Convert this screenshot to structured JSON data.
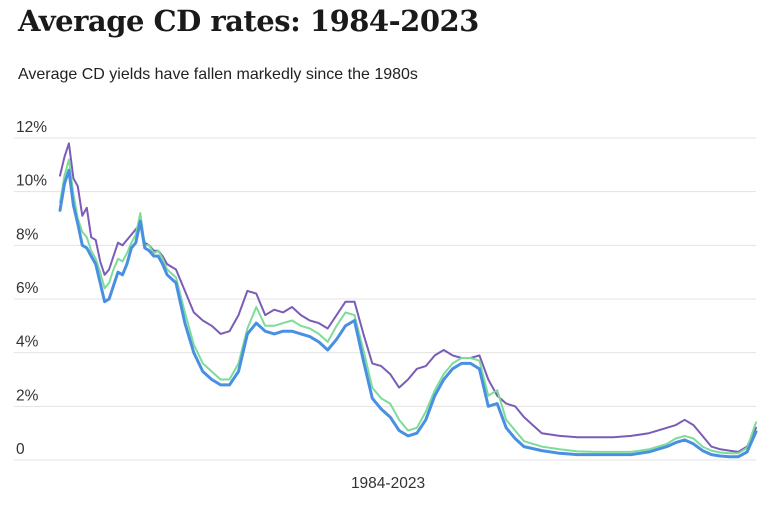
{
  "title": "Average CD rates: 1984-2023",
  "subtitle": "Average CD yields have fallen markedly since the 1980s",
  "chart_data": {
    "type": "line",
    "xlabel": "1984-2023",
    "ylabel": "",
    "ylim": [
      0,
      12
    ],
    "y_ticks": [
      "0",
      "2%",
      "4%",
      "6%",
      "8%",
      "10%",
      "12%"
    ],
    "grid": "horizontal",
    "x": [
      1984.0,
      1984.25,
      1984.5,
      1984.75,
      1985.0,
      1985.25,
      1985.5,
      1985.75,
      1986.0,
      1986.25,
      1986.5,
      1986.75,
      1987.0,
      1987.25,
      1987.5,
      1987.75,
      1988.0,
      1988.25,
      1988.5,
      1988.75,
      1989.0,
      1989.25,
      1989.5,
      1989.75,
      1990.0,
      1990.5,
      1991.0,
      1991.5,
      1992.0,
      1992.5,
      1993.0,
      1993.5,
      1994.0,
      1994.5,
      1995.0,
      1995.5,
      1996.0,
      1996.5,
      1997.0,
      1997.5,
      1998.0,
      1998.5,
      1999.0,
      1999.5,
      2000.0,
      2000.5,
      2001.0,
      2001.5,
      2002.0,
      2002.5,
      2003.0,
      2003.5,
      2004.0,
      2004.5,
      2005.0,
      2005.5,
      2006.0,
      2006.5,
      2007.0,
      2007.5,
      2008.0,
      2008.5,
      2009.0,
      2009.5,
      2010.0,
      2011.0,
      2012.0,
      2013.0,
      2014.0,
      2015.0,
      2016.0,
      2017.0,
      2018.0,
      2018.5,
      2019.0,
      2019.5,
      2020.0,
      2020.5,
      2021.0,
      2021.5,
      2022.0,
      2022.5,
      2023.0
    ],
    "series": [
      {
        "color": "#7b5cb8",
        "values": [
          10.6,
          11.3,
          11.8,
          10.5,
          10.2,
          9.1,
          9.4,
          8.3,
          8.2,
          7.4,
          6.9,
          7.1,
          7.6,
          8.1,
          8.0,
          8.2,
          8.4,
          8.6,
          8.8,
          8.1,
          8.0,
          7.8,
          7.8,
          7.6,
          7.3,
          7.1,
          6.3,
          5.5,
          5.2,
          5.0,
          4.7,
          4.8,
          5.4,
          6.3,
          6.2,
          5.4,
          5.6,
          5.5,
          5.7,
          5.4,
          5.2,
          5.1,
          4.9,
          5.4,
          5.9,
          5.9,
          4.7,
          3.6,
          3.5,
          3.2,
          2.7,
          3.0,
          3.4,
          3.5,
          3.9,
          4.1,
          3.9,
          3.8,
          3.8,
          3.9,
          3.0,
          2.4,
          2.1,
          2.0,
          1.6,
          1.0,
          0.9,
          0.85,
          0.85,
          0.85,
          0.9,
          1.0,
          1.2,
          1.3,
          1.5,
          1.3,
          0.9,
          0.5,
          0.4,
          0.35,
          0.3,
          0.5,
          1.2
        ]
      },
      {
        "color": "#7ddc9a",
        "values": [
          9.6,
          10.6,
          11.2,
          9.9,
          9.0,
          8.5,
          8.3,
          7.8,
          7.5,
          7.0,
          6.4,
          6.6,
          7.1,
          7.5,
          7.4,
          7.7,
          8.1,
          8.4,
          9.2,
          8.0,
          8.0,
          7.7,
          7.8,
          7.5,
          7.1,
          6.8,
          5.5,
          4.3,
          3.6,
          3.3,
          3.0,
          3.0,
          3.6,
          4.9,
          5.7,
          5.0,
          5.0,
          5.1,
          5.2,
          5.0,
          4.9,
          4.7,
          4.4,
          5.0,
          5.5,
          5.4,
          4.1,
          2.7,
          2.3,
          2.1,
          1.5,
          1.1,
          1.2,
          1.8,
          2.6,
          3.2,
          3.6,
          3.8,
          3.8,
          3.7,
          2.4,
          2.6,
          1.5,
          1.1,
          0.7,
          0.5,
          0.4,
          0.32,
          0.3,
          0.3,
          0.3,
          0.4,
          0.6,
          0.8,
          0.9,
          0.8,
          0.5,
          0.35,
          0.28,
          0.25,
          0.25,
          0.45,
          1.4
        ]
      },
      {
        "color": "#4a90e2",
        "values": [
          9.3,
          10.3,
          10.8,
          9.5,
          8.8,
          8.0,
          7.9,
          7.6,
          7.3,
          6.6,
          5.9,
          6.0,
          6.5,
          7.0,
          6.9,
          7.3,
          7.9,
          8.1,
          8.9,
          7.9,
          7.8,
          7.6,
          7.6,
          7.3,
          6.9,
          6.6,
          5.1,
          4.0,
          3.3,
          3.0,
          2.8,
          2.8,
          3.3,
          4.7,
          5.1,
          4.8,
          4.7,
          4.8,
          4.8,
          4.7,
          4.6,
          4.4,
          4.1,
          4.5,
          5.0,
          5.2,
          3.7,
          2.3,
          1.9,
          1.6,
          1.1,
          0.9,
          1.0,
          1.5,
          2.4,
          3.0,
          3.4,
          3.6,
          3.6,
          3.4,
          2.0,
          2.1,
          1.2,
          0.8,
          0.5,
          0.35,
          0.25,
          0.2,
          0.2,
          0.2,
          0.2,
          0.3,
          0.5,
          0.65,
          0.75,
          0.6,
          0.35,
          0.2,
          0.15,
          0.12,
          0.12,
          0.3,
          1.05
        ]
      }
    ]
  }
}
